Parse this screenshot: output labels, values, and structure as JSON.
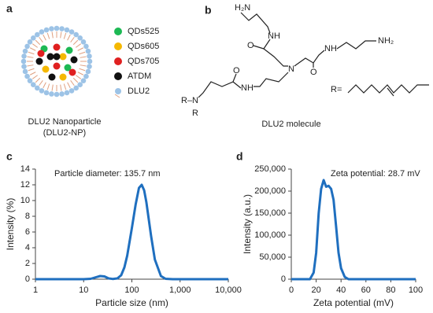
{
  "panel_labels": [
    "a",
    "b",
    "c",
    "d"
  ],
  "panel_a": {
    "legend": [
      {
        "label": "QDs525",
        "color": "#1db954"
      },
      {
        "label": "QDs605",
        "color": "#f5b800"
      },
      {
        "label": "QDs705",
        "color": "#e02020"
      },
      {
        "label": "ATDM",
        "color": "#111111"
      },
      {
        "label": "DLU2",
        "color": "#9dc3e6"
      }
    ],
    "caption": [
      "DLU2 Nanoparticle",
      "(DLU2-NP)"
    ]
  },
  "panel_b": {
    "atoms": [
      "H₂N",
      "NH",
      "O",
      "NH",
      "NH₂",
      "O",
      "N",
      "O",
      "NH",
      "R–N",
      "R",
      "R="
    ],
    "caption": "DLU2 molecule"
  },
  "chart_data": [
    {
      "type": "line",
      "xscale": "log",
      "annotation": "Particle diameter: 135.7 nm",
      "xlabel": "Particle size (nm)",
      "ylabel": "Intensity (%)",
      "x": [
        1,
        5,
        10,
        14,
        18,
        22,
        27,
        33,
        40,
        50,
        60,
        70,
        80,
        100,
        120,
        140,
        160,
        180,
        200,
        250,
        300,
        400,
        500,
        700,
        1000,
        10000
      ],
      "series": [
        {
          "color": "#1f6fbf",
          "values": [
            0,
            0,
            0,
            0.05,
            0.25,
            0.4,
            0.35,
            0.1,
            0.03,
            0.1,
            0.5,
            1.5,
            3,
            6.5,
            9.5,
            11.6,
            12,
            11.3,
            9.8,
            5.5,
            2.5,
            0.4,
            0.05,
            0,
            0,
            0
          ]
        }
      ],
      "xlim": [
        1,
        10000
      ],
      "xticks": [
        1,
        10,
        100,
        {
          "value": 1000,
          "label": "1,000"
        },
        {
          "value": 10000,
          "label": "10,000"
        }
      ],
      "ylim": [
        0,
        14
      ],
      "yticks": [
        0,
        2,
        4,
        6,
        8,
        10,
        12,
        14
      ]
    },
    {
      "type": "line",
      "annotation": "Zeta potential: 28.7 mV",
      "xlabel": "Zeta potential (mV)",
      "ylabel": "Intensity (a.u.)",
      "x": [
        0,
        15,
        18,
        20,
        22,
        24,
        26,
        28,
        30,
        32,
        34,
        36,
        38,
        40,
        43,
        46,
        100
      ],
      "series": [
        {
          "color": "#1f6fbf",
          "values": [
            0,
            0,
            15000,
            60000,
            150000,
            205000,
            225000,
            210000,
            212000,
            205000,
            180000,
            120000,
            60000,
            25000,
            5000,
            0,
            0
          ]
        }
      ],
      "xlim": [
        0,
        100
      ],
      "xticks": [
        0,
        20,
        40,
        60,
        80,
        100
      ],
      "ylim": [
        0,
        250000
      ],
      "yticks": [
        0,
        {
          "value": 50000,
          "label": "50,000"
        },
        {
          "value": 100000,
          "label": "100,000"
        },
        {
          "value": 150000,
          "label": "150,000"
        },
        {
          "value": 200000,
          "label": "200,000"
        },
        {
          "value": 250000,
          "label": "250,000"
        }
      ]
    }
  ]
}
